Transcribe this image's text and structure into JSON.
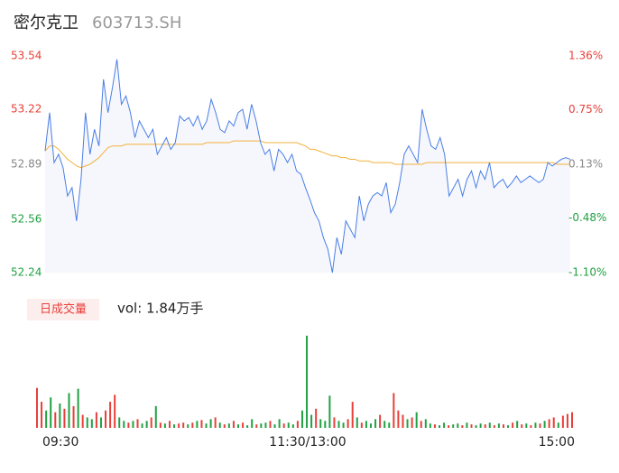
{
  "chart_data": [
    {
      "type": "line",
      "title": "密尔克卫",
      "subtitle": "603713.SH",
      "xlim": [
        0,
        117
      ],
      "xticks": [
        {
          "value": 0,
          "label": "09:30"
        },
        {
          "value": 58.5,
          "label": "11:30/13:00"
        },
        {
          "value": 117,
          "label": "15:00"
        }
      ],
      "ylim": [
        52.24,
        53.54
      ],
      "yticks": [
        53.54,
        53.22,
        52.89,
        52.56,
        52.24
      ],
      "ytick_colors": [
        "#e8403a",
        "#e8403a",
        "#888888",
        "#21a143",
        "#21a143"
      ],
      "y2lim": [
        -1.1,
        1.36
      ],
      "y2ticks": [
        {
          "value": 1.36,
          "label": "1.36%"
        },
        {
          "value": 0.75,
          "label": "0.75%"
        },
        {
          "value": 0.13,
          "label": "0.13%"
        },
        {
          "value": -0.48,
          "label": "-0.48%"
        },
        {
          "value": -1.1,
          "label": "-1.10%"
        }
      ],
      "y2tick_colors": [
        "#e8403a",
        "#e8403a",
        "#888888",
        "#21a143",
        "#21a143"
      ],
      "area_color": "#f5f7fc",
      "series": [
        {
          "color": "#4a7ee6",
          "values": [
            52.97,
            53.2,
            52.9,
            52.95,
            52.87,
            52.7,
            52.75,
            52.55,
            52.8,
            53.2,
            52.95,
            53.1,
            53.0,
            53.4,
            53.2,
            53.35,
            53.52,
            53.25,
            53.3,
            53.2,
            53.05,
            53.15,
            53.1,
            53.05,
            53.1,
            52.95,
            53.0,
            53.05,
            52.98,
            53.02,
            53.18,
            53.15,
            53.17,
            53.12,
            53.18,
            53.1,
            53.15,
            53.28,
            53.2,
            53.1,
            53.08,
            53.15,
            53.12,
            53.2,
            53.22,
            53.1,
            53.25,
            53.15,
            53.02,
            52.95,
            52.98,
            52.85,
            52.98,
            52.95,
            52.9,
            52.95,
            52.85,
            52.83,
            52.75,
            52.68,
            52.6,
            52.55,
            52.45,
            52.38,
            52.24,
            52.45,
            52.35,
            52.55,
            52.5,
            52.45,
            52.7,
            52.55,
            52.65,
            52.7,
            52.72,
            52.7,
            52.78,
            52.6,
            52.65,
            52.78,
            52.95,
            53.0,
            52.95,
            52.9,
            53.22,
            53.1,
            53.0,
            52.98,
            53.05,
            52.95,
            52.7,
            52.75,
            52.8,
            52.7,
            52.8,
            52.85,
            52.75,
            52.85,
            52.8,
            52.9,
            52.75,
            52.78,
            52.8,
            52.75,
            52.78,
            52.82,
            52.78,
            52.8,
            52.82,
            52.8,
            52.78,
            52.8,
            52.9,
            52.88,
            52.9,
            52.92,
            52.93,
            52.92
          ]
        },
        {
          "color": "#f2b13c",
          "values": [
            52.97,
            53.0,
            53.0,
            52.98,
            52.95,
            52.92,
            52.9,
            52.88,
            52.87,
            52.88,
            52.89,
            52.91,
            52.93,
            52.96,
            52.99,
            53.0,
            53.0,
            53.0,
            53.01,
            53.01,
            53.01,
            53.01,
            53.01,
            53.01,
            53.01,
            53.01,
            53.01,
            53.01,
            53.01,
            53.01,
            53.01,
            53.01,
            53.01,
            53.01,
            53.01,
            53.01,
            53.02,
            53.02,
            53.02,
            53.02,
            53.02,
            53.02,
            53.03,
            53.03,
            53.03,
            53.03,
            53.03,
            53.03,
            53.03,
            53.02,
            53.02,
            53.02,
            53.02,
            53.02,
            53.02,
            53.02,
            53.02,
            53.01,
            53.0,
            52.98,
            52.98,
            52.97,
            52.96,
            52.95,
            52.94,
            52.94,
            52.93,
            52.93,
            52.92,
            52.92,
            52.91,
            52.91,
            52.91,
            52.9,
            52.9,
            52.9,
            52.9,
            52.9,
            52.89,
            52.89,
            52.89,
            52.89,
            52.89,
            52.89,
            52.89,
            52.9,
            52.9,
            52.9,
            52.9,
            52.9,
            52.9,
            52.9,
            52.9,
            52.9,
            52.9,
            52.9,
            52.9,
            52.9,
            52.9,
            52.9,
            52.9,
            52.9,
            52.9,
            52.9,
            52.9,
            52.9,
            52.9,
            52.9,
            52.9,
            52.9,
            52.9,
            52.9,
            52.9,
            52.9,
            52.89,
            52.89,
            52.89,
            52.89
          ]
        }
      ]
    },
    {
      "type": "bar",
      "legend_label": "日成交量",
      "volume_label": "vol: 1.84万手",
      "xlim": [
        0,
        117
      ],
      "ylim": [
        0,
        110
      ],
      "values": [
        46,
        30,
        20,
        35,
        18,
        28,
        22,
        40,
        25,
        45,
        15,
        12,
        10,
        18,
        12,
        20,
        30,
        38,
        12,
        8,
        6,
        8,
        10,
        5,
        8,
        12,
        25,
        6,
        5,
        8,
        4,
        5,
        6,
        4,
        6,
        8,
        9,
        5,
        10,
        12,
        6,
        4,
        5,
        8,
        4,
        6,
        3,
        10,
        4,
        5,
        6,
        8,
        4,
        10,
        5,
        6,
        4,
        8,
        20,
        106,
        15,
        22,
        10,
        8,
        37,
        12,
        8,
        6,
        10,
        30,
        12,
        6,
        8,
        5,
        10,
        15,
        8,
        6,
        40,
        20,
        15,
        10,
        12,
        18,
        8,
        10,
        5,
        4,
        3,
        6,
        3,
        4,
        5,
        3,
        6,
        4,
        3,
        5,
        4,
        6,
        3,
        5,
        4,
        3,
        6,
        8,
        4,
        5,
        3,
        6,
        5,
        8,
        10,
        12,
        6,
        14,
        16,
        18
      ],
      "colors": [
        "#e8403a",
        "#e8403a",
        "#21a143",
        "#21a143",
        "#e8403a",
        "#21a143",
        "#e8403a",
        "#21a143",
        "#e8403a",
        "#21a143",
        "#e8403a",
        "#21a143",
        "#21a143",
        "#e8403a",
        "#21a143",
        "#e8403a",
        "#e8403a",
        "#e8403a",
        "#21a143",
        "#21a143",
        "#e8403a",
        "#21a143",
        "#e8403a",
        "#21a143",
        "#21a143",
        "#e8403a",
        "#21a143",
        "#e8403a",
        "#21a143",
        "#e8403a",
        "#21a143",
        "#e8403a",
        "#e8403a",
        "#21a143",
        "#e8403a",
        "#21a143",
        "#e8403a",
        "#21a143",
        "#21a143",
        "#e8403a",
        "#21a143",
        "#e8403a",
        "#21a143",
        "#e8403a",
        "#21a143",
        "#e8403a",
        "#21a143",
        "#21a143",
        "#e8403a",
        "#21a143",
        "#21a143",
        "#e8403a",
        "#21a143",
        "#21a143",
        "#e8403a",
        "#21a143",
        "#21a143",
        "#e8403a",
        "#21a143",
        "#21a143",
        "#21a143",
        "#e8403a",
        "#21a143",
        "#21a143",
        "#21a143",
        "#e8403a",
        "#21a143",
        "#21a143",
        "#e8403a",
        "#e8403a",
        "#21a143",
        "#e8403a",
        "#21a143",
        "#21a143",
        "#21a143",
        "#e8403a",
        "#21a143",
        "#21a143",
        "#e8403a",
        "#e8403a",
        "#e8403a",
        "#21a143",
        "#e8403a",
        "#21a143",
        "#e8403a",
        "#21a143",
        "#21a143",
        "#e8403a",
        "#21a143",
        "#21a143",
        "#e8403a",
        "#21a143",
        "#21a143",
        "#e8403a",
        "#21a143",
        "#e8403a",
        "#21a143",
        "#21a143",
        "#e8403a",
        "#21a143",
        "#e8403a",
        "#21a143",
        "#e8403a",
        "#21a143",
        "#e8403a",
        "#21a143",
        "#e8403a",
        "#21a143",
        "#e8403a",
        "#21a143",
        "#e8403a",
        "#21a143",
        "#e8403a",
        "#e8403a",
        "#21a143",
        "#e8403a",
        "#e8403a",
        "#e8403a"
      ]
    }
  ]
}
